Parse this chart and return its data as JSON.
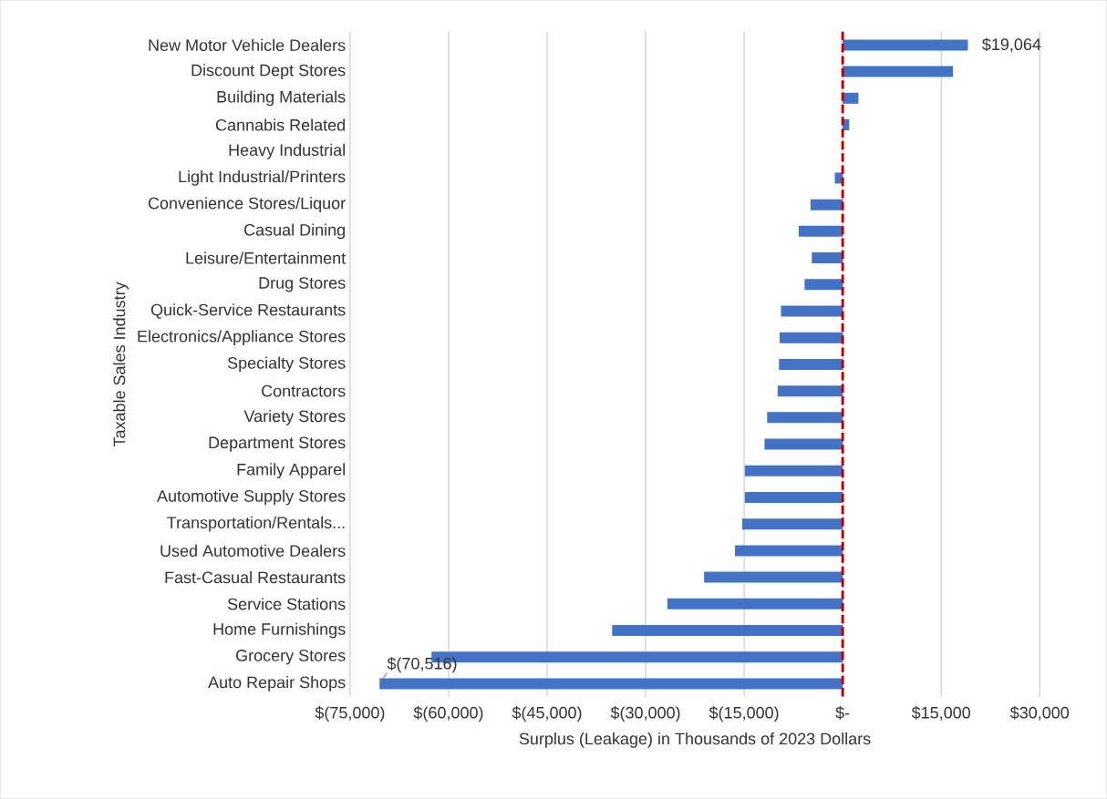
{
  "chart_data": {
    "type": "bar",
    "orientation": "horizontal",
    "xlabel": "Surplus (Leakage) in Thousands of 2023 Dollars",
    "ylabel": "Taxable Sales Industry",
    "categories": [
      "New Motor Vehicle Dealers",
      "Discount Dept Stores",
      "Building Materials",
      "Cannabis Related",
      "Heavy Industrial",
      "Light Industrial/Printers",
      "Convenience Stores/Liquor",
      "Casual Dining",
      "Leisure/Entertainment",
      "Drug Stores",
      "Quick-Service Restaurants",
      "Electronics/Appliance Stores",
      "Specialty Stores",
      "Contractors",
      "Variety Stores",
      "Department Stores",
      "Family Apparel",
      "Automotive Supply Stores",
      "Transportation/Rentals...",
      "Used Automotive Dealers",
      "Fast-Casual Restaurants",
      "Service Stations",
      "Home Furnishings",
      "Grocery Stores",
      "Auto Repair Shops"
    ],
    "values": [
      19064,
      16800,
      2400,
      1000,
      null,
      -1200,
      -4900,
      -6700,
      -4700,
      -5800,
      -9400,
      -9600,
      -9700,
      -9900,
      -11500,
      -11900,
      -14900,
      -14900,
      -15300,
      -16400,
      -21100,
      -26700,
      -35100,
      -62600,
      -70516
    ],
    "value_labels": [
      "$19,064",
      null,
      null,
      null,
      null,
      null,
      null,
      null,
      null,
      null,
      null,
      null,
      null,
      null,
      null,
      null,
      null,
      null,
      null,
      null,
      null,
      null,
      null,
      null,
      "$(70,516)"
    ],
    "color": "#4472c4",
    "xlim": [
      -75000,
      30000
    ],
    "xticks": [
      {
        "value": -75000,
        "label": "$(75,000)"
      },
      {
        "value": -60000,
        "label": "$(60,000)"
      },
      {
        "value": -45000,
        "label": "$(45,000)"
      },
      {
        "value": -30000,
        "label": "$(30,000)"
      },
      {
        "value": -15000,
        "label": "$(15,000)"
      },
      {
        "value": 0,
        "label": "$-"
      },
      {
        "value": 15000,
        "label": "$15,000"
      },
      {
        "value": 30000,
        "label": "$30,000"
      }
    ],
    "grid": "x",
    "ref_lines": [
      {
        "axis": "x",
        "value": 0,
        "color": "#c00000",
        "line_style": "dashed"
      }
    ]
  }
}
